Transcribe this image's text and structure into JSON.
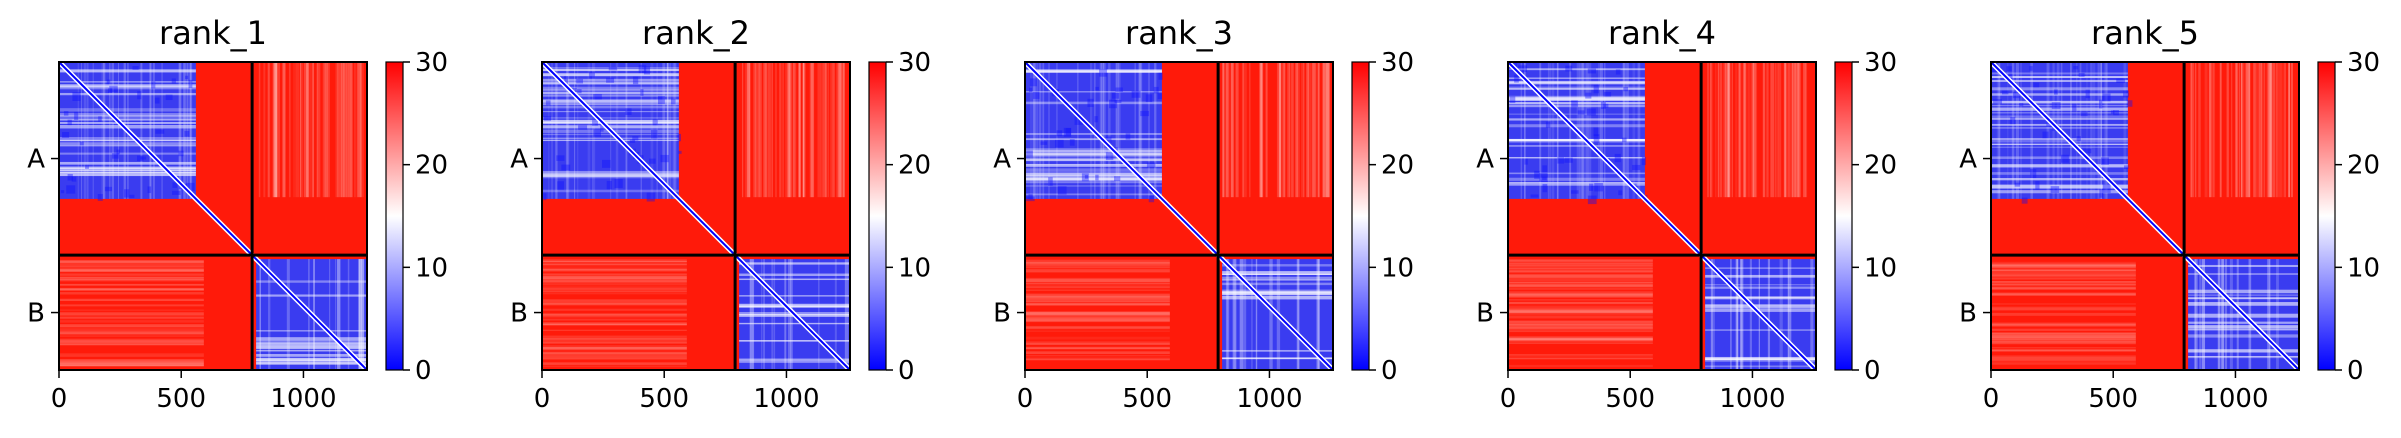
{
  "chart_data": {
    "type": "heatmap",
    "colormap": [
      "#0000ff",
      "#ffffff",
      "#ff0000"
    ],
    "x_ticks": [
      0,
      500,
      1000
    ],
    "x_range": [
      0,
      1260
    ],
    "y_range": [
      1260,
      0
    ],
    "chain_boundary": 790,
    "chains": [
      {
        "label": "A",
        "start": 0,
        "end": 790
      },
      {
        "label": "B",
        "start": 790,
        "end": 1260
      }
    ],
    "colorbar": {
      "min": 0,
      "max": 30,
      "ticks": [
        0,
        10,
        20,
        30
      ]
    },
    "panels": [
      {
        "title": "rank_1"
      },
      {
        "title": "rank_2"
      },
      {
        "title": "rank_3"
      },
      {
        "title": "rank_4"
      },
      {
        "title": "rank_5"
      }
    ]
  }
}
